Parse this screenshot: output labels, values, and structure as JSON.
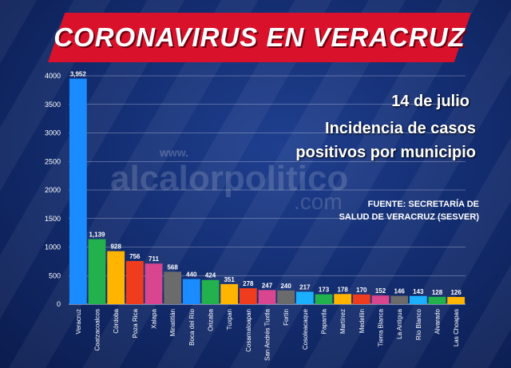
{
  "header": {
    "title": "CORONAVIRUS EN VERACRUZ",
    "date": "14 de julio",
    "subtitle_line1": "Incidencia de casos",
    "subtitle_line2": "positivos por municipio",
    "source_line1": "FUENTE: SECRETARÍA DE",
    "source_line2": "SALUD DE VERACRUZ (SESVER)"
  },
  "watermark": {
    "prefix": "www.",
    "name": "alcalorpolitico",
    "suffix": ".com"
  },
  "colors": {
    "banner": "#d9112a",
    "background": "#142e72"
  },
  "chart_data": {
    "type": "bar",
    "title": "Incidencia de casos positivos por municipio",
    "xlabel": "",
    "ylabel": "",
    "ylim": [
      0,
      4000
    ],
    "yticks": [
      0,
      500,
      1000,
      1500,
      2000,
      2500,
      3000,
      3500,
      4000
    ],
    "grid": true,
    "categories": [
      "Veracruz",
      "Coatzacoalcos",
      "Córdoba",
      "Poza Rica",
      "Xalapa",
      "Minatitlán",
      "Boca del Río",
      "Orizaba",
      "Tuxpan",
      "Cosamaloapan",
      "San Andrés Tuxtla",
      "Fortín",
      "Cosoleacaque",
      "Papantla",
      "Martínez",
      "Medellín",
      "Tierra Blanca",
      "La Antigua",
      "Río Blanco",
      "Alvarado",
      "Las Choapas"
    ],
    "values": [
      3952,
      1139,
      928,
      756,
      711,
      568,
      440,
      424,
      351,
      278,
      247,
      240,
      217,
      173,
      178,
      170,
      152,
      146,
      143,
      128,
      126
    ],
    "value_labels": [
      "3,952",
      "1,139",
      "928",
      "756",
      "711",
      "568",
      "440",
      "424",
      "351",
      "278",
      "247",
      "240",
      "217",
      "173",
      "178",
      "170",
      "152",
      "146",
      "143",
      "128",
      "126"
    ],
    "bar_colors": [
      "#1a8cff",
      "#22b14c",
      "#ffb400",
      "#f03c1e",
      "#d9458f",
      "#6b6b6b",
      "#1a8cff",
      "#22b14c",
      "#ffb400",
      "#f03c1e",
      "#d9458f",
      "#6b6b6b",
      "#1ab0ff",
      "#22b14c",
      "#ffb400",
      "#f03c1e",
      "#d9458f",
      "#6b6b6b",
      "#1ab0ff",
      "#22b14c",
      "#ffb400"
    ]
  }
}
